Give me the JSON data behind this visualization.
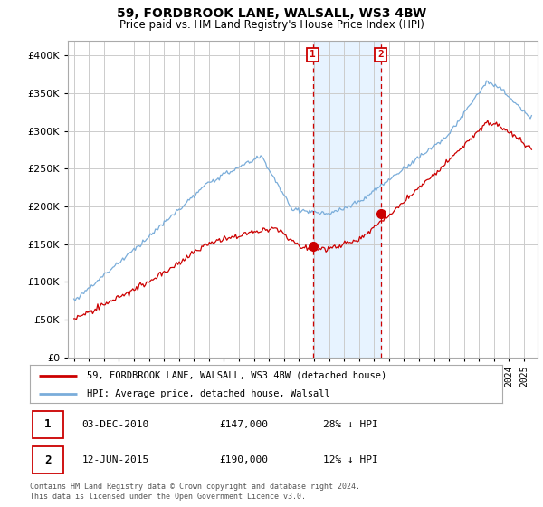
{
  "title": "59, FORDBROOK LANE, WALSALL, WS3 4BW",
  "subtitle": "Price paid vs. HM Land Registry's House Price Index (HPI)",
  "ylim": [
    0,
    420000
  ],
  "yticks": [
    0,
    50000,
    100000,
    150000,
    200000,
    250000,
    300000,
    350000,
    400000
  ],
  "hpi_color": "#7aadda",
  "price_color": "#cc0000",
  "marker1_date": 2010.92,
  "marker2_date": 2015.44,
  "sale1_price_val": 147000,
  "sale2_price_val": 190000,
  "sale1_label": "03-DEC-2010",
  "sale1_price": "£147,000",
  "sale1_hpi": "28% ↓ HPI",
  "sale2_label": "12-JUN-2015",
  "sale2_price": "£190,000",
  "sale2_hpi": "12% ↓ HPI",
  "legend_label1": "59, FORDBROOK LANE, WALSALL, WS3 4BW (detached house)",
  "legend_label2": "HPI: Average price, detached house, Walsall",
  "footer": "Contains HM Land Registry data © Crown copyright and database right 2024.\nThis data is licensed under the Open Government Licence v3.0.",
  "background_color": "#ffffff",
  "plot_bg_color": "#ffffff",
  "grid_color": "#cccccc",
  "shade_color": "#ddeeff"
}
